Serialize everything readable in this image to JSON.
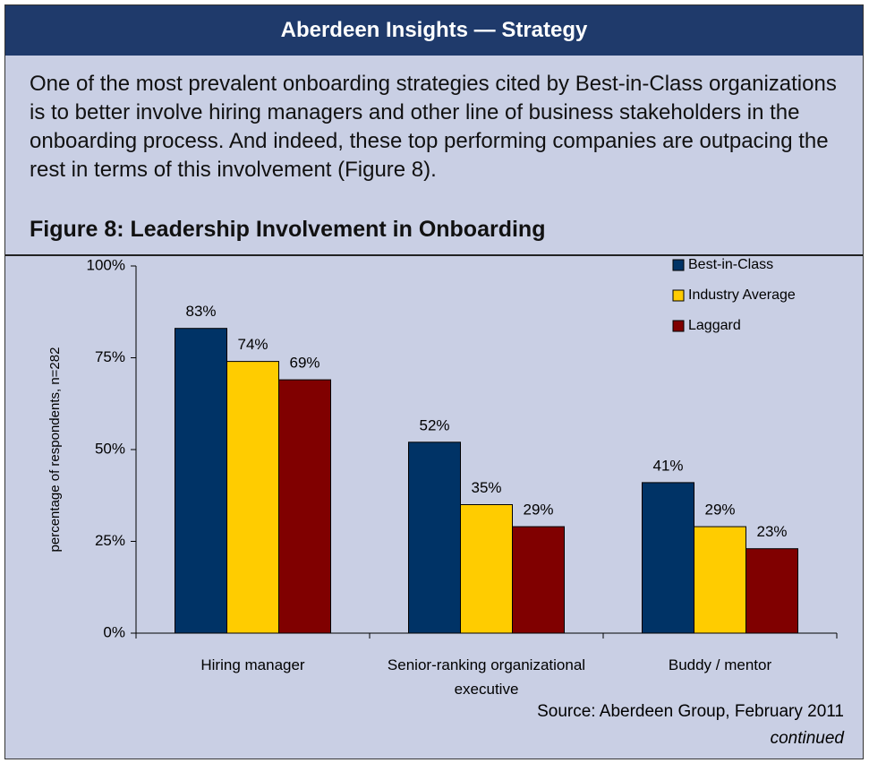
{
  "header": {
    "title": "Aberdeen Insights — Strategy"
  },
  "paragraph": "One of the most prevalent onboarding strategies cited by Best-in-Class organizations is to better involve hiring managers and other line of business stakeholders in the onboarding process. And indeed, these top performing companies are outpacing the rest in terms of this involvement (Figure 8).",
  "chart_data": {
    "type": "bar",
    "title": "Figure 8: Leadership Involvement in Onboarding",
    "y_label": "percentage of respondents, n=282",
    "categories": [
      "Hiring manager",
      "Senior-ranking organizational executive",
      "Buddy / mentor"
    ],
    "series": [
      {
        "name": "Best-in-Class",
        "color": "#003366",
        "values": [
          83,
          52,
          41
        ],
        "value_labels": [
          "83%",
          "52%",
          "41%"
        ]
      },
      {
        "name": "Industry Average",
        "color": "#ffcc00",
        "values": [
          74,
          35,
          29
        ],
        "value_labels": [
          "74%",
          "35%",
          "29%"
        ]
      },
      {
        "name": "Laggard",
        "color": "#800000",
        "values": [
          69,
          29,
          23
        ],
        "value_labels": [
          "69%",
          "29%",
          "23%"
        ]
      }
    ],
    "ylim": [
      0,
      100
    ],
    "yticks": [
      {
        "value": 0,
        "label": "0%"
      },
      {
        "value": 25,
        "label": "25%"
      },
      {
        "value": 50,
        "label": "50%"
      },
      {
        "value": 75,
        "label": "75%"
      },
      {
        "value": 100,
        "label": "100%"
      }
    ],
    "grid": false,
    "legend": "top-right"
  },
  "source": "Source: Aberdeen Group, February 2011",
  "continued": "continued"
}
